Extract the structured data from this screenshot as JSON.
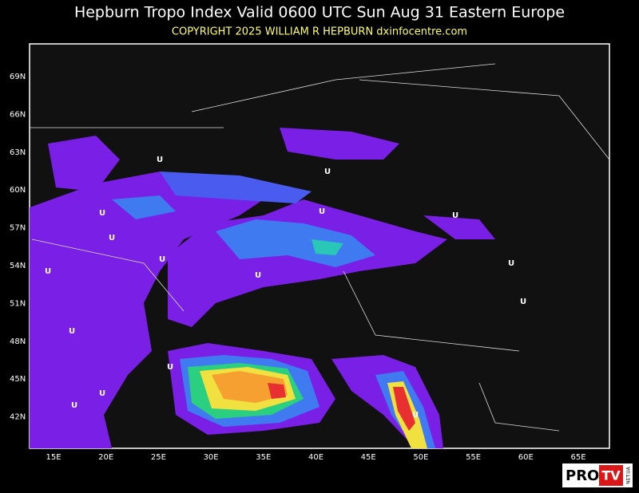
{
  "header": {
    "title": "Hepburn Tropo Index Valid 0600 UTC Sun Aug 31 Eastern Europe",
    "copyright": "COPYRIGHT 2025  WILLIAM R HEPBURN  dxinfocentre.com"
  },
  "map": {
    "lat_labels": [
      "69N",
      "66N",
      "63N",
      "60N",
      "57N",
      "54N",
      "51N",
      "48N",
      "45N",
      "42N"
    ],
    "lon_labels": [
      "15E",
      "20E",
      "25E",
      "30E",
      "35E",
      "40E",
      "45E",
      "50E",
      "55E",
      "60E",
      "65E"
    ],
    "markers": [
      "U",
      "U",
      "U",
      "U",
      "U",
      "U",
      "U",
      "U",
      "U",
      "U",
      "U",
      "U",
      "U",
      "U",
      "U",
      "U"
    ]
  },
  "logo": {
    "pro": "PRO",
    "tv": "TV",
    "site": "NET.UA"
  }
}
